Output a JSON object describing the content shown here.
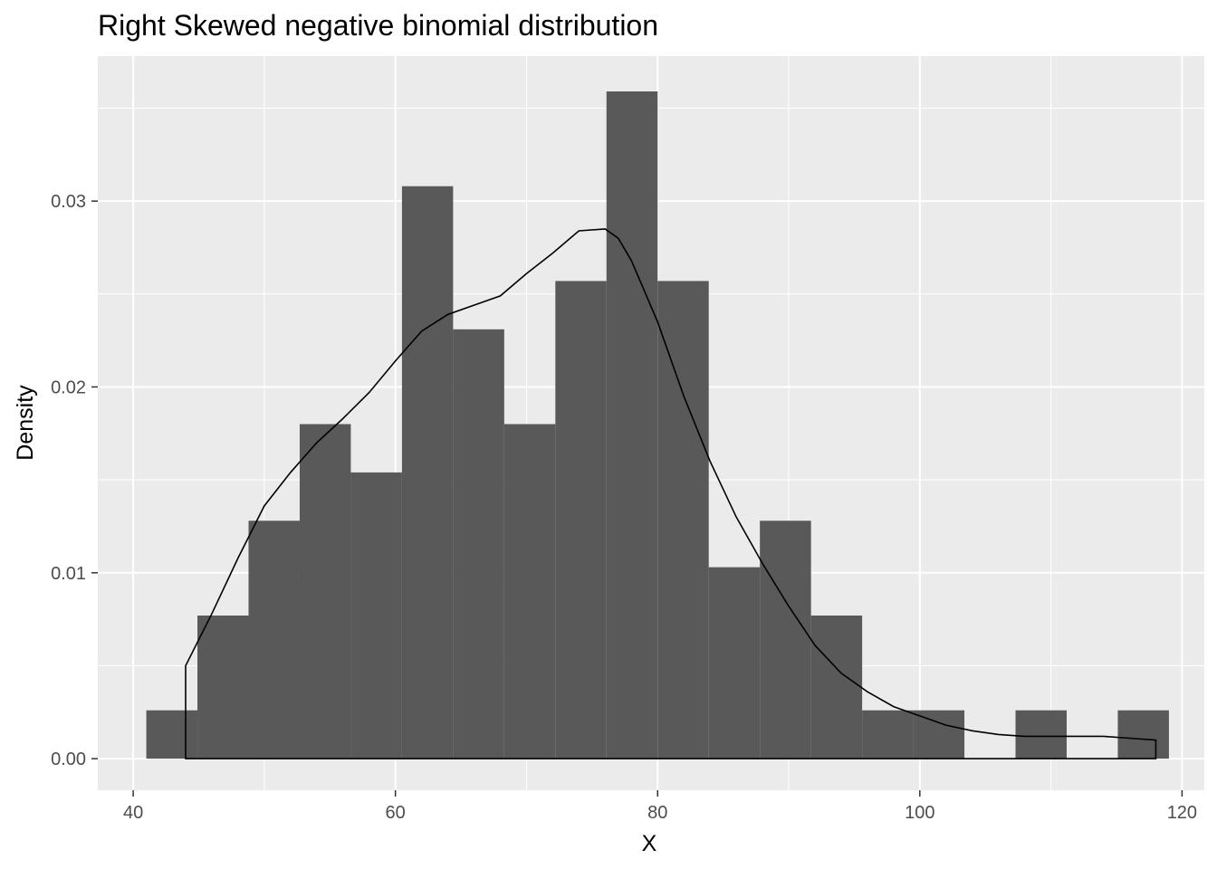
{
  "chart_data": {
    "type": "bar",
    "title": "Right Skewed negative binomial distribution",
    "xlabel": "X",
    "ylabel": "Density",
    "xlim": [
      37.3,
      121.7
    ],
    "ylim": [
      -0.0017,
      0.0378
    ],
    "x_ticks": [
      40,
      60,
      80,
      100,
      120
    ],
    "x_tick_labels": [
      "40",
      "60",
      "80",
      "100",
      "120"
    ],
    "y_ticks": [
      0.0,
      0.01,
      0.02,
      0.03
    ],
    "y_tick_labels": [
      "0.00",
      "0.01",
      "0.02",
      "0.03"
    ],
    "grid": true,
    "series": [
      {
        "type": "histogram",
        "bins": [
          {
            "x0": 41.0,
            "x1": 44.9,
            "density": 0.0026
          },
          {
            "x0": 44.9,
            "x1": 48.8,
            "density": 0.0077
          },
          {
            "x0": 48.8,
            "x1": 52.7,
            "density": 0.0128
          },
          {
            "x0": 52.7,
            "x1": 56.6,
            "density": 0.018
          },
          {
            "x0": 56.6,
            "x1": 60.5,
            "density": 0.0154
          },
          {
            "x0": 60.5,
            "x1": 64.4,
            "density": 0.0308
          },
          {
            "x0": 64.4,
            "x1": 68.3,
            "density": 0.0231
          },
          {
            "x0": 68.3,
            "x1": 72.2,
            "density": 0.018
          },
          {
            "x0": 72.2,
            "x1": 76.1,
            "density": 0.0257
          },
          {
            "x0": 76.1,
            "x1": 80.0,
            "density": 0.0359
          },
          {
            "x0": 80.0,
            "x1": 83.9,
            "density": 0.0257
          },
          {
            "x0": 83.9,
            "x1": 87.8,
            "density": 0.0103
          },
          {
            "x0": 87.8,
            "x1": 91.7,
            "density": 0.0128
          },
          {
            "x0": 91.7,
            "x1": 95.6,
            "density": 0.0077
          },
          {
            "x0": 95.6,
            "x1": 99.5,
            "density": 0.0026
          },
          {
            "x0": 99.5,
            "x1": 103.4,
            "density": 0.0026
          },
          {
            "x0": 103.4,
            "x1": 107.3,
            "density": 0.0
          },
          {
            "x0": 107.3,
            "x1": 111.2,
            "density": 0.0026
          },
          {
            "x0": 111.2,
            "x1": 115.1,
            "density": 0.0
          },
          {
            "x0": 115.1,
            "x1": 119.0,
            "density": 0.0026
          }
        ],
        "color": "#595959"
      },
      {
        "type": "density",
        "color": "#000000",
        "x": [
          44.0,
          46.0,
          48.0,
          50.0,
          52.0,
          54.0,
          56.0,
          58.0,
          60.0,
          62.0,
          64.0,
          66.0,
          68.0,
          70.0,
          72.0,
          74.0,
          76.0,
          77.0,
          78.0,
          80.0,
          82.0,
          84.0,
          86.0,
          88.0,
          90.0,
          92.0,
          94.0,
          96.0,
          98.0,
          100.0,
          102.0,
          104.0,
          106.0,
          108.0,
          110.0,
          112.0,
          114.0,
          116.0,
          118.0
        ],
        "y": [
          0.005,
          0.0078,
          0.0108,
          0.0136,
          0.0154,
          0.017,
          0.0183,
          0.0197,
          0.0214,
          0.023,
          0.0239,
          0.0244,
          0.0249,
          0.0261,
          0.0272,
          0.0284,
          0.0285,
          0.028,
          0.0268,
          0.0235,
          0.0195,
          0.016,
          0.013,
          0.0105,
          0.0082,
          0.0061,
          0.0046,
          0.0036,
          0.0028,
          0.0023,
          0.0018,
          0.0015,
          0.0013,
          0.0012,
          0.0012,
          0.0012,
          0.0012,
          0.0011,
          0.001
        ]
      }
    ]
  }
}
